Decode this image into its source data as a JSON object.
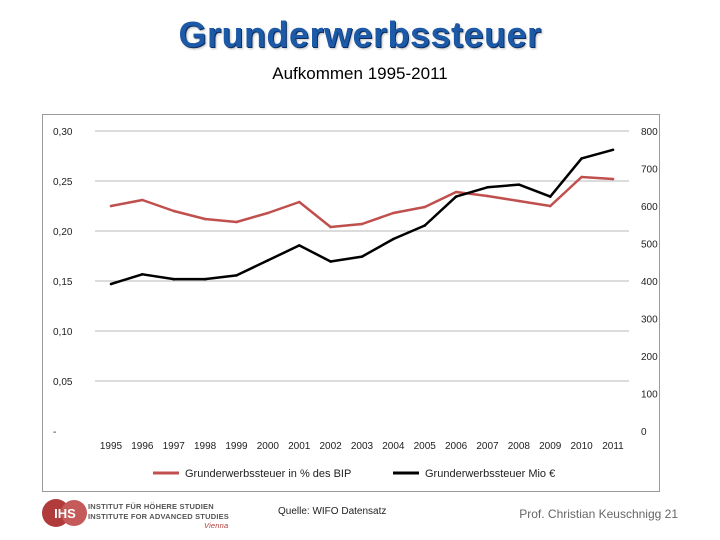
{
  "header": {
    "title": "Grunderwerbssteuer",
    "subtitle": "Aufkommen 1995-2011"
  },
  "chart_data": {
    "type": "line",
    "title": "",
    "x": [
      "1995",
      "1996",
      "1997",
      "1998",
      "1999",
      "2000",
      "2001",
      "2002",
      "2003",
      "2004",
      "2005",
      "2006",
      "2007",
      "2008",
      "2009",
      "2010",
      "2011"
    ],
    "left_axis": {
      "ylim": [
        0,
        0.3
      ],
      "ticks": [
        0,
        0.05,
        0.1,
        0.15,
        0.2,
        0.25,
        0.3
      ],
      "tick_labels": [
        "-",
        "0,05",
        "0,10",
        "0,15",
        "0,20",
        "0,25",
        "0,30"
      ]
    },
    "right_axis": {
      "ylim": [
        0,
        800
      ],
      "ticks": [
        0,
        100,
        200,
        300,
        400,
        500,
        600,
        700,
        800
      ],
      "tick_labels": [
        "0",
        "100",
        "200",
        "300",
        "400",
        "500",
        "600",
        "700",
        "800"
      ]
    },
    "series": [
      {
        "name": "Grunderwerbssteuer in % des BIP",
        "axis": "left",
        "color": "#c0504d",
        "values": [
          0.225,
          0.231,
          0.22,
          0.212,
          0.209,
          0.218,
          0.229,
          0.204,
          0.207,
          0.218,
          0.224,
          0.239,
          0.235,
          0.23,
          0.225,
          0.254,
          0.252
        ]
      },
      {
        "name": "Grunderwerbssteuer Mio €",
        "axis": "right",
        "color": "#000000",
        "values": [
          392,
          418,
          405,
          405,
          415,
          455,
          495,
          452,
          465,
          512,
          548,
          625,
          650,
          657,
          625,
          727,
          750
        ]
      }
    ],
    "grid": true,
    "legend": "bottom"
  },
  "footer": {
    "source": "Quelle: WIFO Datensatz",
    "author_page": "Prof. Christian Keuschnigg 21"
  },
  "logo": {
    "line1": "INSTITUT FÜR HÖHERE STUDIEN",
    "line2": "INSTITUTE FOR ADVANCED STUDIES",
    "line3": "Vienna",
    "mark": "IHS",
    "color": "#b13a3a"
  }
}
